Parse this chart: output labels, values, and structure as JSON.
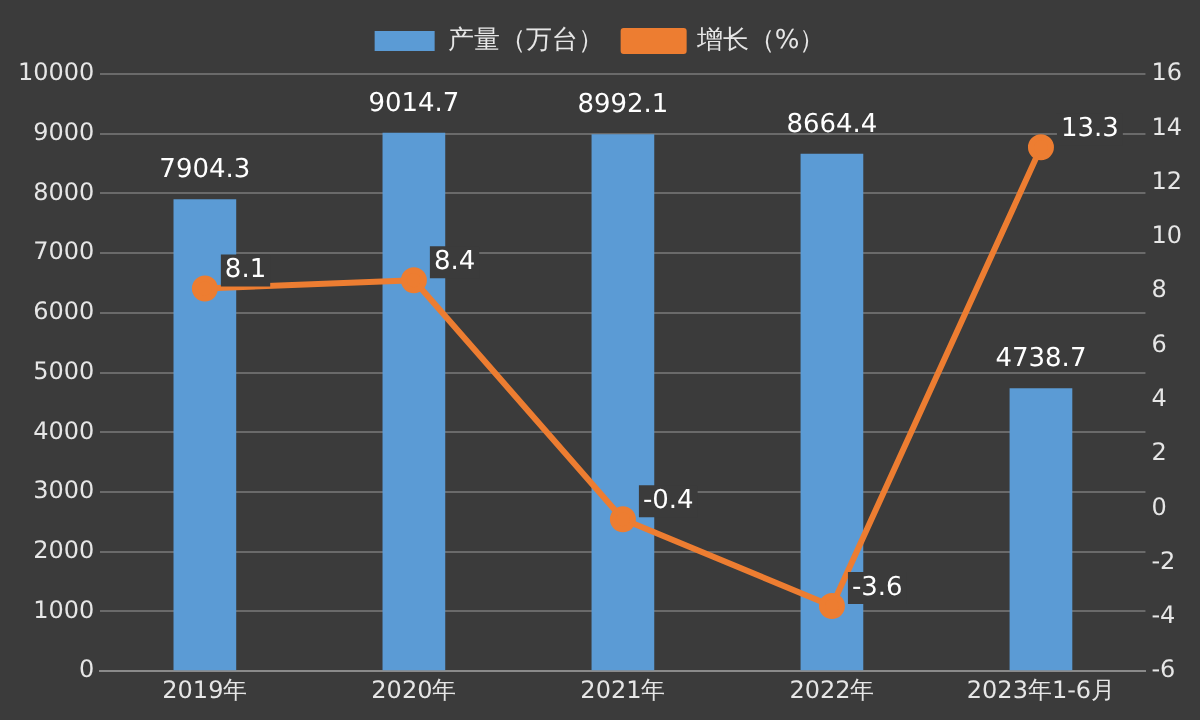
{
  "chart_data": {
    "type": "bar",
    "categories": [
      "2019年",
      "2020年",
      "2021年",
      "2022年",
      "2023年1-6月"
    ],
    "series": [
      {
        "name": "产量（万台）",
        "color": "#5b9bd5",
        "values": [
          7904.3,
          9014.7,
          8992.1,
          8664.4,
          4738.7
        ]
      },
      {
        "name": "增长（%）",
        "type": "line",
        "axis": "y2",
        "color": "#ed7d31",
        "values": [
          8.1,
          8.4,
          -0.4,
          -3.6,
          13.3
        ]
      }
    ],
    "ylim": [
      0,
      10000
    ],
    "yticks": [
      0,
      1000,
      2000,
      3000,
      4000,
      5000,
      6000,
      7000,
      8000,
      9000,
      10000
    ],
    "y2lim": [
      -6,
      16
    ],
    "y2ticks": [
      -6,
      -4,
      -2,
      0,
      2,
      4,
      6,
      8,
      10,
      12,
      14,
      16
    ],
    "grid": "y",
    "legend": "top",
    "marker": "circle",
    "line_style": "solid",
    "data_labels": true
  }
}
